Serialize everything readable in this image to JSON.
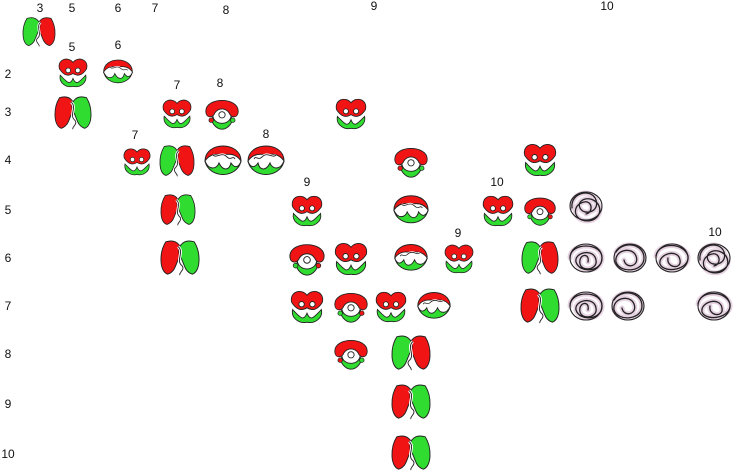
{
  "top_labels": [
    "3",
    "5",
    "6",
    "7",
    "8",
    "9",
    "10"
  ],
  "row_labels": [
    "2",
    "3",
    "4",
    "5",
    "6",
    "7",
    "8",
    "9",
    "10"
  ],
  "inline_labels": [
    "5",
    "6",
    "7",
    "8",
    "7",
    "8",
    "9",
    "10",
    "9",
    "10"
  ],
  "colors": {
    "red": "#f01414",
    "green": "#2fdc2f",
    "outline": "#222222",
    "plain_knot_fill": "#ffffff",
    "plain_knot_halo": "#e7d2e2"
  },
  "knot_icons": [
    {
      "icon": "knot-colored-icon"
    },
    {
      "icon": "knot-colored-icon"
    },
    {
      "icon": "knot-colored-icon"
    },
    {
      "icon": "knot-colored-icon"
    },
    {
      "icon": "knot-colored-icon"
    },
    {
      "icon": "knot-colored-icon"
    },
    {
      "icon": "knot-colored-icon"
    },
    {
      "icon": "knot-colored-icon"
    },
    {
      "icon": "knot-colored-icon"
    },
    {
      "icon": "knot-colored-icon"
    },
    {
      "icon": "knot-colored-icon"
    },
    {
      "icon": "knot-colored-icon"
    },
    {
      "icon": "knot-colored-icon"
    },
    {
      "icon": "knot-colored-icon"
    },
    {
      "icon": "knot-colored-icon"
    },
    {
      "icon": "knot-colored-icon"
    },
    {
      "icon": "knot-colored-icon"
    },
    {
      "icon": "knot-colored-icon"
    },
    {
      "icon": "knot-colored-icon"
    },
    {
      "icon": "knot-colored-icon"
    },
    {
      "icon": "knot-colored-icon"
    },
    {
      "icon": "knot-colored-icon"
    },
    {
      "icon": "knot-colored-icon"
    },
    {
      "icon": "knot-colored-icon"
    },
    {
      "icon": "knot-colored-icon"
    },
    {
      "icon": "knot-colored-icon"
    },
    {
      "icon": "knot-colored-icon"
    },
    {
      "icon": "knot-colored-icon"
    },
    {
      "icon": "knot-colored-icon"
    },
    {
      "icon": "knot-colored-icon"
    },
    {
      "icon": "knot-colored-icon"
    },
    {
      "icon": "knot-colored-icon"
    },
    {
      "icon": "knot-colored-icon"
    },
    {
      "icon": "knot-plain-icon"
    },
    {
      "icon": "knot-plain-icon"
    },
    {
      "icon": "knot-plain-icon"
    },
    {
      "icon": "knot-plain-icon"
    },
    {
      "icon": "knot-plain-icon"
    },
    {
      "icon": "knot-plain-icon"
    },
    {
      "icon": "knot-plain-icon"
    },
    {
      "icon": "knot-plain-icon"
    }
  ]
}
